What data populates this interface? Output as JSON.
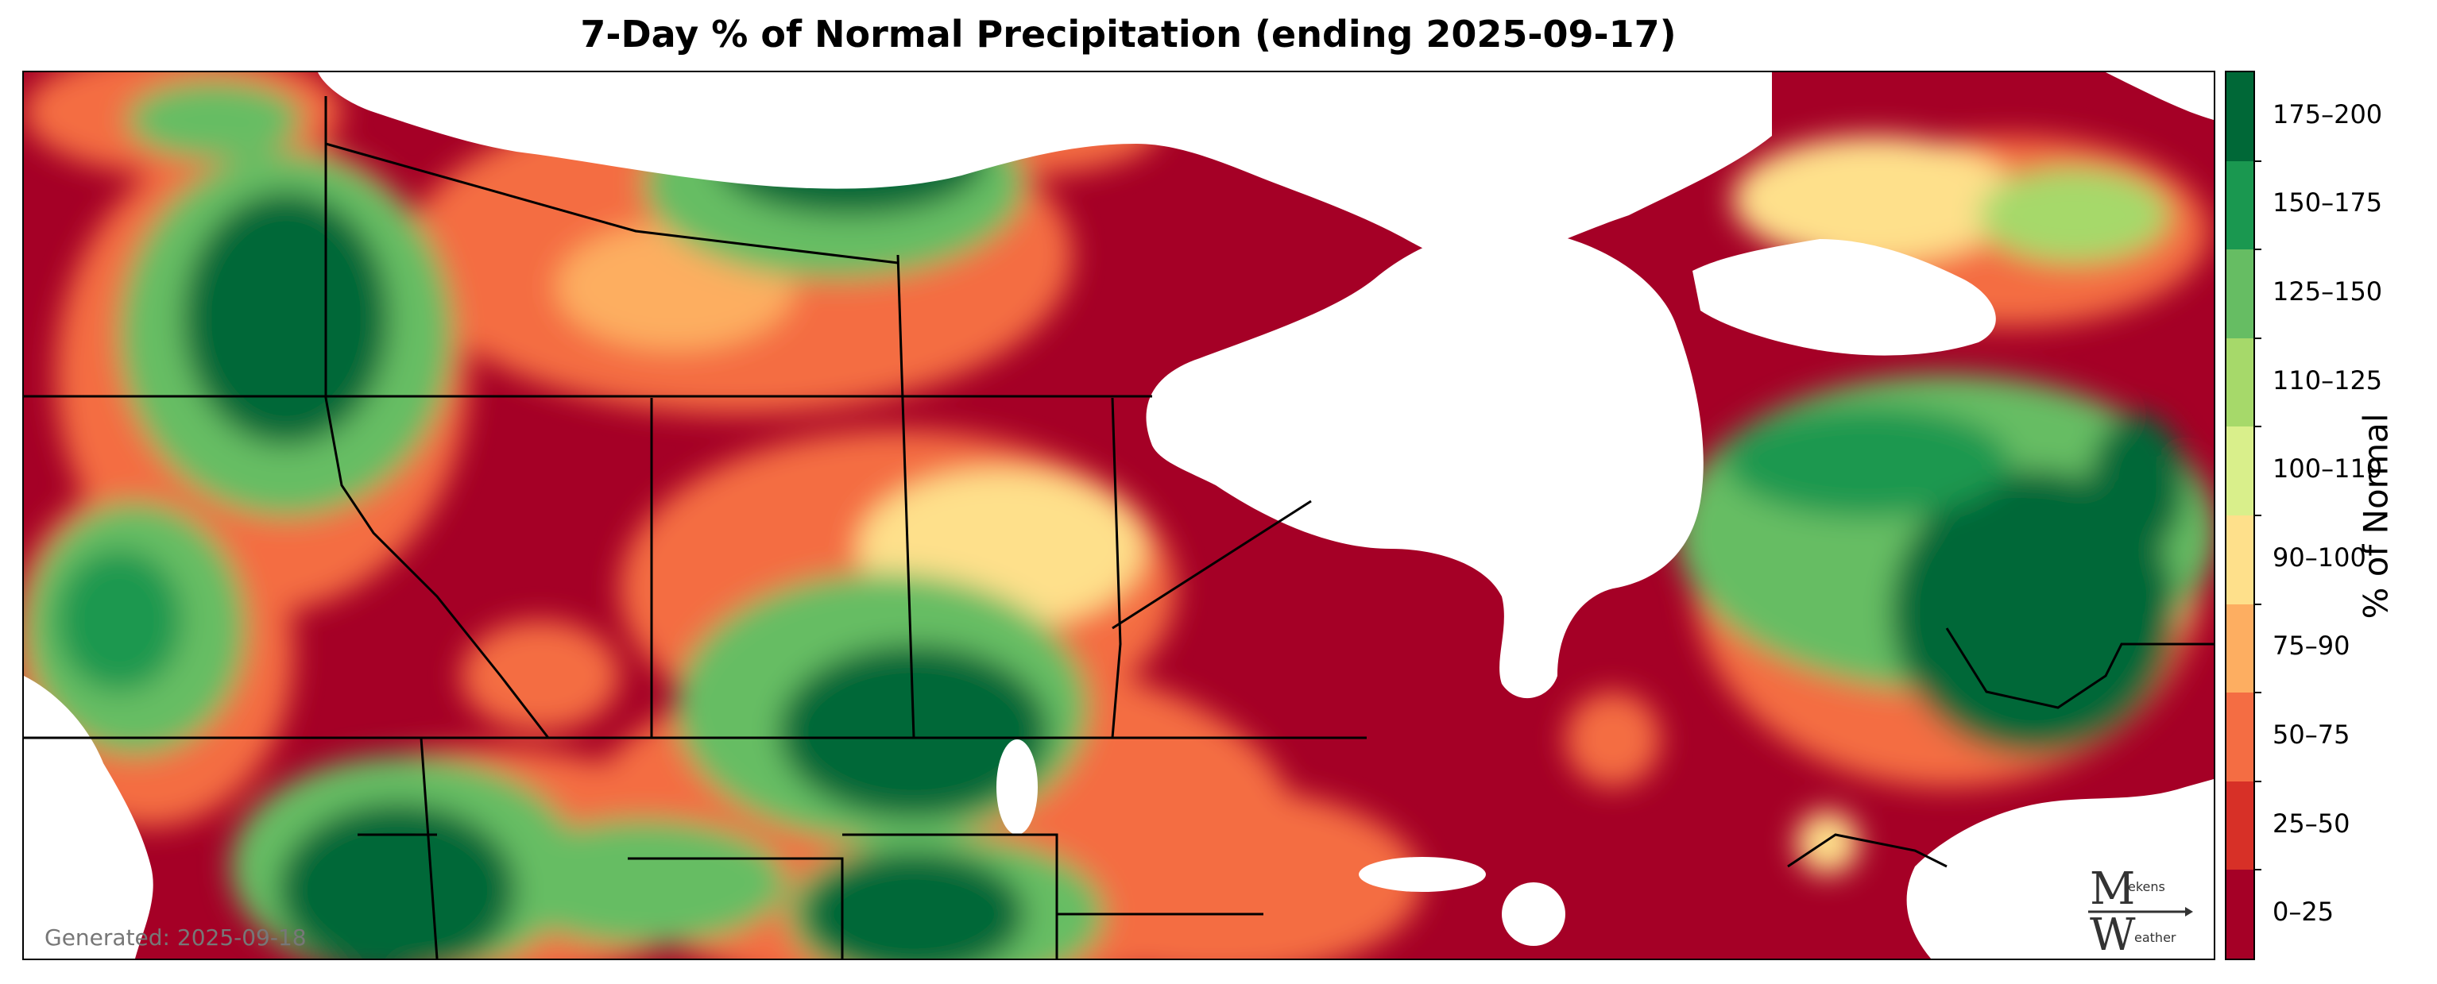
{
  "title": "7-Day % of Normal Precipitation (ending 2025-09-17)",
  "generated": "Generated: 2025-09-18",
  "logo_text": {
    "top": "ekens",
    "bottom": "eather"
  },
  "colorbar": {
    "title": "% of Normal",
    "bins": [
      {
        "label": "0–25",
        "color": "#a50026"
      },
      {
        "label": "25–50",
        "color": "#d73027"
      },
      {
        "label": "50–75",
        "color": "#f46d43"
      },
      {
        "label": "75–90",
        "color": "#fdae61"
      },
      {
        "label": "90–100",
        "color": "#fee08b"
      },
      {
        "label": "100–110",
        "color": "#d9ef8b"
      },
      {
        "label": "110–125",
        "color": "#a6d96a"
      },
      {
        "label": "125–150",
        "color": "#66bd63"
      },
      {
        "label": "150–175",
        "color": "#1a9850"
      },
      {
        "label": "175–200",
        "color": "#006837"
      }
    ]
  },
  "map_colors": {
    "water": "#ffffff",
    "border": "#000000"
  }
}
